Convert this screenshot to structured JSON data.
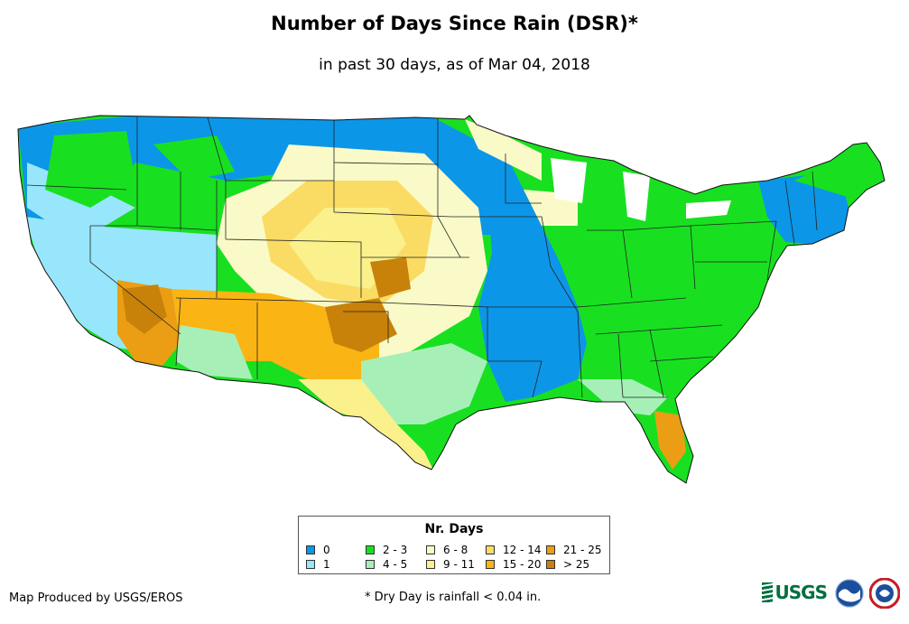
{
  "title": "Number of Days Since Rain (DSR)*",
  "subtitle": "in past 30 days, as of Mar 04, 2018",
  "legend": {
    "title": "Nr. Days",
    "items": [
      {
        "label": "0",
        "color": "#0c96e8"
      },
      {
        "label": "1",
        "color": "#98e6fb"
      },
      {
        "label": "2 - 3",
        "color": "#18e020"
      },
      {
        "label": "4 - 5",
        "color": "#a6f0b8"
      },
      {
        "label": "6 - 8",
        "color": "#fafac8"
      },
      {
        "label": "9 - 11",
        "color": "#faf08c"
      },
      {
        "label": "12 - 14",
        "color": "#fadc64"
      },
      {
        "label": "15 - 20",
        "color": "#fab414"
      },
      {
        "label": "21 - 25",
        "color": "#eb9e14"
      },
      {
        "label": "> 25",
        "color": "#c8820a"
      }
    ]
  },
  "producer": "Map Produced by USGS/EROS",
  "footnote": "* Dry Day is rainfall < 0.04 in.",
  "logos": {
    "usgs": "USGS",
    "usgs_icon": "usgs-logo",
    "noaa_icon": "noaa-logo",
    "nws_icon": "nws-logo"
  }
}
